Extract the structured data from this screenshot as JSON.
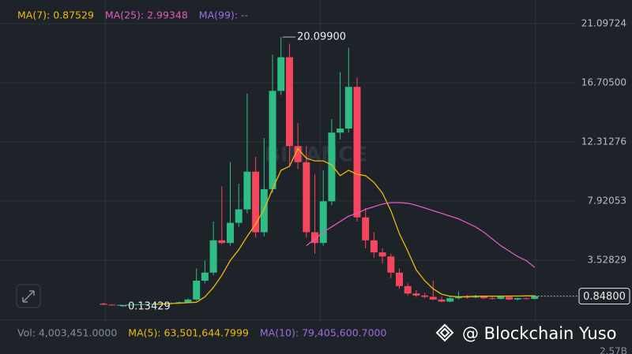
{
  "chart_data": {
    "type": "candlestick",
    "ylim": [
      -0.5,
      22.5
    ],
    "yticks": [
      21.09724,
      {
        "value": 16.705,
        "label": "16.70500"
      },
      12.31276,
      7.92053,
      3.52829
    ],
    "grid": true,
    "up_color": "#2ebd85",
    "down_color": "#f6465d",
    "open": [
      0.3,
      0.22,
      0.18,
      0.2,
      0.22,
      0.24,
      0.26,
      0.28,
      0.3,
      0.34,
      0.4,
      0.6,
      2.0,
      2.6,
      5.0,
      4.8,
      6.3,
      7.3,
      10.1,
      5.6,
      8.8,
      16.1,
      18.6,
      12.0,
      10.8,
      5.6,
      4.8,
      7.9,
      13.0,
      13.3,
      16.4,
      6.7,
      5.0,
      4.1,
      3.8,
      2.6,
      1.6,
      1.05,
      0.9,
      0.8,
      0.6,
      0.45,
      0.7,
      0.8,
      0.75,
      0.85,
      0.7,
      0.65,
      0.8,
      0.6,
      0.7,
      0.65
    ],
    "high": [
      0.35,
      0.25,
      0.22,
      0.24,
      0.26,
      0.28,
      0.3,
      0.33,
      0.38,
      0.45,
      0.7,
      2.9,
      3.5,
      6.4,
      9.0,
      10.8,
      9.2,
      15.9,
      11.2,
      12.6,
      18.8,
      20.099,
      19.6,
      13.7,
      12.0,
      9.9,
      10.2,
      14.0,
      17.5,
      19.3,
      17.1,
      7.4,
      5.6,
      4.4,
      4.0,
      2.9,
      1.8,
      1.3,
      1.1,
      2.0,
      0.8,
      0.8,
      1.2,
      0.95,
      0.95,
      0.9,
      0.8,
      0.9,
      0.85,
      0.75,
      0.75,
      0.9
    ],
    "low": [
      0.2,
      0.15,
      0.13429,
      0.16,
      0.18,
      0.2,
      0.22,
      0.24,
      0.26,
      0.3,
      0.36,
      0.5,
      1.8,
      2.4,
      4.7,
      4.6,
      6.0,
      7.0,
      5.2,
      5.3,
      8.5,
      15.8,
      10.5,
      10.3,
      5.2,
      4.0,
      4.6,
      7.6,
      12.5,
      13.0,
      6.4,
      4.4,
      3.7,
      3.3,
      2.2,
      1.4,
      0.9,
      0.8,
      0.7,
      0.55,
      0.4,
      0.4,
      0.6,
      0.65,
      0.7,
      0.65,
      0.6,
      0.6,
      0.55,
      0.55,
      0.6,
      0.6
    ],
    "close": [
      0.22,
      0.18,
      0.2,
      0.22,
      0.24,
      0.26,
      0.28,
      0.3,
      0.34,
      0.4,
      0.6,
      2.0,
      2.6,
      5.0,
      4.8,
      6.3,
      7.3,
      10.1,
      5.6,
      8.8,
      16.1,
      18.6,
      12.0,
      10.8,
      5.6,
      4.8,
      7.9,
      13.0,
      13.3,
      16.4,
      6.7,
      5.0,
      4.1,
      3.8,
      2.6,
      1.6,
      1.05,
      0.9,
      0.8,
      0.6,
      0.45,
      0.7,
      0.8,
      0.75,
      0.85,
      0.7,
      0.65,
      0.8,
      0.6,
      0.7,
      0.65,
      0.848
    ],
    "series": [
      {
        "name": "MA(7): 0.87529",
        "color": "#f0b90b",
        "values": [
          null,
          null,
          null,
          null,
          null,
          null,
          0.25,
          0.27,
          0.3,
          0.33,
          0.37,
          0.4,
          0.8,
          1.5,
          2.4,
          3.5,
          4.3,
          5.3,
          6.2,
          7.3,
          8.8,
          10.2,
          10.5,
          11.8,
          11.1,
          10.9,
          10.9,
          10.6,
          9.8,
          10.2,
          9.9,
          9.8,
          9.3,
          8.5,
          7.2,
          5.5,
          4.2,
          2.8,
          2.0,
          1.4,
          1.0,
          0.85,
          0.8,
          0.82,
          0.84,
          0.85,
          0.85,
          0.85,
          0.86,
          0.86,
          0.87,
          0.87529
        ]
      },
      {
        "name": "MA(25): 2.99348",
        "color": "#e05bc0",
        "values": [
          null,
          null,
          null,
          null,
          null,
          null,
          null,
          null,
          null,
          null,
          null,
          null,
          null,
          null,
          null,
          null,
          null,
          null,
          null,
          null,
          null,
          null,
          null,
          null,
          4.6,
          5.1,
          5.6,
          6.0,
          6.4,
          6.8,
          7.0,
          7.3,
          7.5,
          7.7,
          7.8,
          7.8,
          7.75,
          7.6,
          7.4,
          7.2,
          7.0,
          6.8,
          6.6,
          6.3,
          6.0,
          5.6,
          5.1,
          4.6,
          4.2,
          3.8,
          3.5,
          2.99348
        ]
      }
    ],
    "extra_legend": [
      {
        "name": "MA(99): --",
        "color": "#a06be0"
      }
    ],
    "high_label": {
      "value": 20.099,
      "label": "20.09900"
    },
    "low_label": 0.13429,
    "last_price": {
      "value": 0.848,
      "label": "0.84800"
    },
    "volume_texts": [
      {
        "text": "Vol: 4,003,451.0000",
        "color": "#848e9c"
      },
      {
        "text": "MA(5): 63,501,644.7999",
        "color": "#f0b90b"
      },
      {
        "text": "MA(10): 79,405,600.7000",
        "color": "#a06be0"
      }
    ],
    "volume_axis_label": "2.57B",
    "watermark": "BINANCE",
    "credit": "@ Blockchain Yuso"
  }
}
